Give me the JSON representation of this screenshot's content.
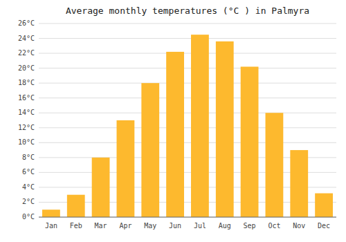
{
  "chart_data": {
    "type": "bar",
    "title": "Average monthly temperatures (°C ) in Palmyra",
    "categories": [
      "Jan",
      "Feb",
      "Mar",
      "Apr",
      "May",
      "Jun",
      "Jul",
      "Aug",
      "Sep",
      "Oct",
      "Nov",
      "Dec"
    ],
    "values": [
      1.0,
      3.0,
      8.0,
      13.0,
      18.0,
      22.2,
      24.5,
      23.6,
      20.2,
      14.0,
      9.0,
      3.2
    ],
    "color": "#FDB92E",
    "ylim": [
      0,
      26
    ],
    "yticks": [
      {
        "value": 0,
        "label": "0°C"
      },
      {
        "value": 2,
        "label": "2°C"
      },
      {
        "value": 4,
        "label": "4°C"
      },
      {
        "value": 6,
        "label": "6°C"
      },
      {
        "value": 8,
        "label": "8°C"
      },
      {
        "value": 10,
        "label": "10°C"
      },
      {
        "value": 12,
        "label": "12°C"
      },
      {
        "value": 14,
        "label": "14°C"
      },
      {
        "value": 16,
        "label": "16°C"
      },
      {
        "value": 18,
        "label": "18°C"
      },
      {
        "value": 20,
        "label": "20°C"
      },
      {
        "value": 22,
        "label": "22°C"
      },
      {
        "value": 24,
        "label": "24°C"
      },
      {
        "value": 26,
        "label": "26°C"
      }
    ],
    "grid": true
  }
}
